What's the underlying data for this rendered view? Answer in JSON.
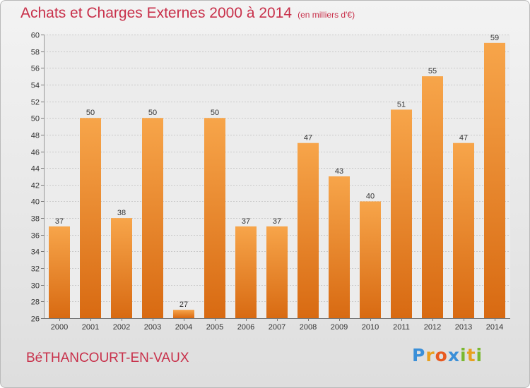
{
  "chart_data": {
    "type": "bar",
    "title": "Achats et Charges Externes 2000 à 2014",
    "subtitle": "(en milliers d'€)",
    "categories": [
      "2000",
      "2001",
      "2002",
      "2003",
      "2004",
      "2005",
      "2006",
      "2007",
      "2008",
      "2009",
      "2010",
      "2011",
      "2012",
      "2013",
      "2014"
    ],
    "values": [
      37,
      50,
      38,
      50,
      27,
      50,
      37,
      37,
      47,
      43,
      40,
      51,
      55,
      47,
      59
    ],
    "ylim": [
      26,
      60
    ],
    "yticks": [
      26,
      28,
      30,
      32,
      34,
      36,
      38,
      40,
      42,
      44,
      46,
      48,
      50,
      52,
      54,
      56,
      58,
      60
    ],
    "grid": true,
    "bar_color": "#f0902f",
    "xlabel": "",
    "ylabel": ""
  },
  "commune": "BéTHANCOURT-EN-VAUX",
  "logo": {
    "letters": [
      "P",
      "r",
      "o",
      "x",
      "i",
      "t",
      "i"
    ],
    "colors": [
      "#3a8fd8",
      "#e8a020",
      "#e85a20",
      "#3a8fd8",
      "#7ab830",
      "#e8a020",
      "#7ab830"
    ]
  }
}
